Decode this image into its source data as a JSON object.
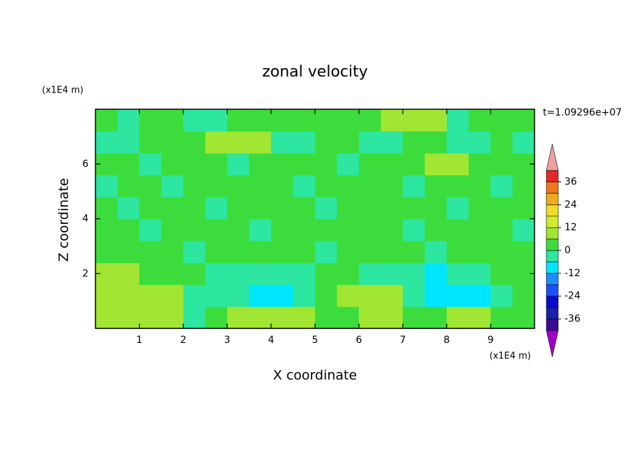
{
  "chart_data": {
    "type": "contour",
    "title": "zonal velocity",
    "xlabel": "X coordinate",
    "ylabel": "Z coordinate",
    "x_unit": "(x1E4 m)",
    "y_unit": "(x1E4 m)",
    "annotation": "t=1.09296e+07",
    "xlim": [
      0,
      10
    ],
    "xticks": [
      1,
      2,
      3,
      4,
      5,
      6,
      7,
      8,
      9
    ],
    "ylim": [
      0,
      8
    ],
    "yticks": [
      2,
      4,
      6
    ],
    "z": [
      [
        8,
        8,
        8,
        8,
        -3,
        3,
        8,
        9,
        9,
        8,
        3,
        3,
        8,
        9,
        3,
        3,
        8,
        9,
        3,
        3
      ],
      [
        9,
        9,
        9,
        8,
        -3,
        -3,
        -3,
        -8,
        -8,
        -3,
        3,
        9,
        10,
        9,
        -3,
        -8,
        -9,
        -8,
        -3,
        3
      ],
      [
        8,
        8,
        3,
        3,
        3,
        -3,
        -3,
        -3,
        -3,
        -3,
        3,
        3,
        -3,
        -3,
        -3,
        -8,
        -3,
        -3,
        3,
        3
      ],
      [
        3,
        3,
        3,
        3,
        -3,
        3,
        3,
        3,
        3,
        3,
        -3,
        3,
        3,
        3,
        3,
        -3,
        3,
        3,
        3,
        3
      ],
      [
        3,
        3,
        -3,
        3,
        3,
        3,
        3,
        -3,
        3,
        3,
        3,
        3,
        3,
        3,
        -3,
        3,
        3,
        3,
        3,
        -3
      ],
      [
        3,
        -3,
        3,
        3,
        3,
        -3,
        3,
        3,
        3,
        3,
        -3,
        3,
        3,
        3,
        3,
        3,
        -3,
        3,
        3,
        3
      ],
      [
        -3,
        3,
        3,
        -3,
        3,
        3,
        3,
        3,
        3,
        -3,
        3,
        3,
        3,
        3,
        -3,
        3,
        3,
        3,
        -3,
        3
      ],
      [
        3,
        3,
        -3,
        3,
        3,
        3,
        -3,
        3,
        3,
        3,
        3,
        -3,
        3,
        3,
        3,
        8,
        8,
        3,
        3,
        3
      ],
      [
        -3,
        -3,
        3,
        3,
        3,
        8,
        8,
        8,
        -3,
        -3,
        3,
        3,
        -3,
        -3,
        3,
        3,
        -3,
        -3,
        3,
        -3
      ],
      [
        3,
        -3,
        3,
        3,
        -3,
        -3,
        3,
        3,
        3,
        3,
        3,
        3,
        3,
        8,
        9,
        8,
        -3,
        3,
        3,
        3
      ]
    ],
    "colorbar": {
      "lim": [
        -42,
        42
      ],
      "ticks": [
        -36,
        -24,
        -12,
        0,
        12,
        24,
        36
      ],
      "colors": [
        "#3a0a96",
        "#1e1eaa",
        "#0a0ad2",
        "#1e50ff",
        "#1e8cff",
        "#00e6ff",
        "#2de6a0",
        "#3cdc3c",
        "#a0e632",
        "#d2eb28",
        "#f0dc28",
        "#f0aa1e",
        "#f0781e",
        "#e62828"
      ],
      "extend_colors": [
        "#a000c8",
        "#f0a0a0"
      ]
    }
  }
}
